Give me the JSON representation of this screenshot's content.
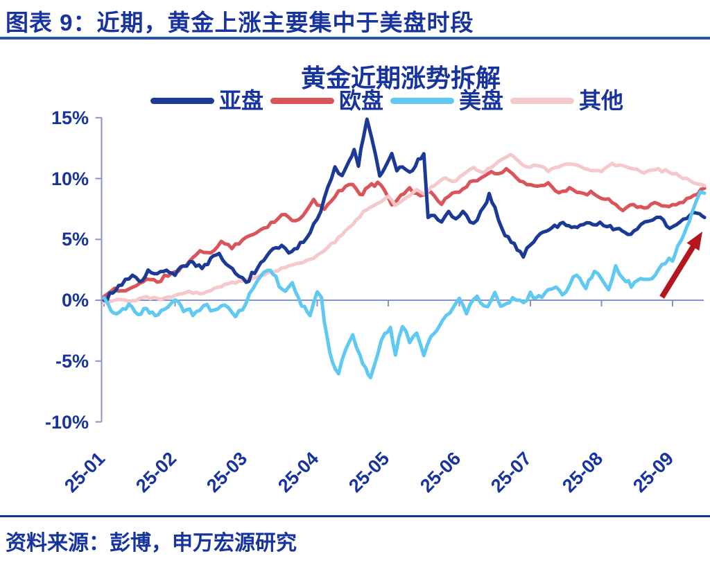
{
  "header": {
    "title": "图表 9：近期，黄金上涨主要集中于美盘时段",
    "text_color": "#17339E",
    "underline_color": "#2B51B4"
  },
  "source": {
    "text": "资料来源：彭博，申万宏源研究"
  },
  "chart_data": {
    "type": "line",
    "title": "黄金近期涨势拆解",
    "legend_position": "top",
    "grid": false,
    "text_color": "#17339E",
    "axis_color": "#8892C4",
    "x_axis": {
      "tick_labels": [
        "25-01",
        "25-02",
        "25-03",
        "25-04",
        "25-05",
        "25-06",
        "25-07",
        "25-08",
        "25-09"
      ],
      "unit": "year-month"
    },
    "y_axis": {
      "tick_labels": [
        "15%",
        "10%",
        "5%",
        "0%",
        "-5%",
        "-10%"
      ],
      "tick_values": [
        15,
        10,
        5,
        0,
        -5,
        -10
      ],
      "min": -10,
      "max": 15,
      "unit": "%"
    },
    "series": [
      {
        "name": "亚盘",
        "color": "#1B3A96",
        "points": [
          [
            0,
            0
          ],
          [
            0.12,
            0.6
          ],
          [
            0.25,
            1.4
          ],
          [
            0.4,
            2.1
          ],
          [
            0.5,
            1.5
          ],
          [
            0.62,
            2.4
          ],
          [
            0.75,
            2.0
          ],
          [
            0.88,
            2.6
          ],
          [
            1.0,
            2.1
          ],
          [
            1.12,
            2.9
          ],
          [
            1.25,
            3.2
          ],
          [
            1.38,
            2.5
          ],
          [
            1.5,
            3.3
          ],
          [
            1.62,
            3.7
          ],
          [
            1.72,
            3.0
          ],
          [
            1.85,
            2.1
          ],
          [
            2.0,
            1.6
          ],
          [
            2.12,
            2.3
          ],
          [
            2.25,
            3.2
          ],
          [
            2.38,
            4.2
          ],
          [
            2.5,
            4.5
          ],
          [
            2.6,
            3.7
          ],
          [
            2.72,
            4.3
          ],
          [
            2.85,
            5.1
          ],
          [
            2.95,
            6.3
          ],
          [
            3.05,
            7.5
          ],
          [
            3.15,
            9.3
          ],
          [
            3.25,
            10.9
          ],
          [
            3.35,
            10.1
          ],
          [
            3.45,
            11.4
          ],
          [
            3.52,
            12.3
          ],
          [
            3.58,
            11.2
          ],
          [
            3.65,
            13.3
          ],
          [
            3.7,
            14.8
          ],
          [
            3.76,
            13.6
          ],
          [
            3.82,
            11.9
          ],
          [
            3.88,
            10.1
          ],
          [
            3.95,
            10.9
          ],
          [
            4.05,
            11.9
          ],
          [
            4.12,
            10.6
          ],
          [
            4.2,
            11.0
          ],
          [
            4.3,
            10.4
          ],
          [
            4.42,
            11.4
          ],
          [
            4.5,
            12.1
          ],
          [
            4.56,
            6.6
          ],
          [
            4.65,
            6.9
          ],
          [
            4.75,
            6.4
          ],
          [
            4.85,
            7.2
          ],
          [
            4.95,
            6.6
          ],
          [
            5.05,
            7.3
          ],
          [
            5.15,
            6.4
          ],
          [
            5.25,
            6.6
          ],
          [
            5.35,
            7.6
          ],
          [
            5.42,
            8.6
          ],
          [
            5.5,
            7.4
          ],
          [
            5.6,
            5.9
          ],
          [
            5.73,
            4.8
          ],
          [
            5.9,
            3.7
          ],
          [
            6.0,
            4.6
          ],
          [
            6.14,
            5.5
          ],
          [
            6.3,
            5.9
          ],
          [
            6.46,
            6.4
          ],
          [
            6.58,
            6.0
          ],
          [
            6.7,
            6.2
          ],
          [
            6.88,
            6.3
          ],
          [
            7.08,
            6.2
          ],
          [
            7.25,
            5.7
          ],
          [
            7.37,
            5.3
          ],
          [
            7.5,
            5.9
          ],
          [
            7.61,
            6.4
          ],
          [
            7.72,
            6.6
          ],
          [
            7.83,
            6.9
          ],
          [
            7.96,
            5.8
          ],
          [
            8.1,
            6.4
          ],
          [
            8.25,
            7.0
          ],
          [
            8.38,
            7.2
          ],
          [
            8.45,
            6.8
          ]
        ]
      },
      {
        "name": "欧盘",
        "color": "#D9555A",
        "points": [
          [
            0,
            0.3
          ],
          [
            0.15,
            0.9
          ],
          [
            0.3,
            0.7
          ],
          [
            0.45,
            1.3
          ],
          [
            0.6,
            1.7
          ],
          [
            0.75,
            1.5
          ],
          [
            0.9,
            2.1
          ],
          [
            1.05,
            2.4
          ],
          [
            1.2,
            3.2
          ],
          [
            1.35,
            4.1
          ],
          [
            1.5,
            3.8
          ],
          [
            1.65,
            4.8
          ],
          [
            1.8,
            4.4
          ],
          [
            1.95,
            4.9
          ],
          [
            2.1,
            5.4
          ],
          [
            2.25,
            6.0
          ],
          [
            2.4,
            6.5
          ],
          [
            2.55,
            7.0
          ],
          [
            2.7,
            6.4
          ],
          [
            2.85,
            7.3
          ],
          [
            2.95,
            8.2
          ],
          [
            3.1,
            7.5
          ],
          [
            3.25,
            8.6
          ],
          [
            3.4,
            9.3
          ],
          [
            3.5,
            9.6
          ],
          [
            3.6,
            8.7
          ],
          [
            3.72,
            9.2
          ],
          [
            3.85,
            9.7
          ],
          [
            3.95,
            9.2
          ],
          [
            4.05,
            7.8
          ],
          [
            4.18,
            8.6
          ],
          [
            4.3,
            9.2
          ],
          [
            4.45,
            8.6
          ],
          [
            4.6,
            8.9
          ],
          [
            4.75,
            8.0
          ],
          [
            4.9,
            8.7
          ],
          [
            5.0,
            9.0
          ],
          [
            5.1,
            9.4
          ],
          [
            5.25,
            9.9
          ],
          [
            5.4,
            10.3
          ],
          [
            5.55,
            10.5
          ],
          [
            5.66,
            10.8
          ],
          [
            5.8,
            10.1
          ],
          [
            5.95,
            9.6
          ],
          [
            6.1,
            9.3
          ],
          [
            6.25,
            9.6
          ],
          [
            6.4,
            8.9
          ],
          [
            6.55,
            9.2
          ],
          [
            6.7,
            8.7
          ],
          [
            6.85,
            8.9
          ],
          [
            7.0,
            8.3
          ],
          [
            7.15,
            8.1
          ],
          [
            7.3,
            7.4
          ],
          [
            7.45,
            7.9
          ],
          [
            7.6,
            7.6
          ],
          [
            7.75,
            7.9
          ],
          [
            7.9,
            7.7
          ],
          [
            8.05,
            7.9
          ],
          [
            8.2,
            8.3
          ],
          [
            8.35,
            8.9
          ],
          [
            8.45,
            9.2
          ]
        ]
      },
      {
        "name": "美盘",
        "color": "#5FC9F1",
        "points": [
          [
            0,
            0.2
          ],
          [
            0.1,
            -0.6
          ],
          [
            0.22,
            -1.1
          ],
          [
            0.35,
            -0.3
          ],
          [
            0.48,
            -1.2
          ],
          [
            0.6,
            -0.5
          ],
          [
            0.72,
            -1.3
          ],
          [
            0.85,
            -0.6
          ],
          [
            1.0,
            0.2
          ],
          [
            1.12,
            -0.7
          ],
          [
            1.25,
            -1.1
          ],
          [
            1.4,
            -0.4
          ],
          [
            1.55,
            -1.0
          ],
          [
            1.7,
            -0.5
          ],
          [
            1.85,
            -1.2
          ],
          [
            2.0,
            -0.2
          ],
          [
            2.1,
            0.9
          ],
          [
            2.2,
            2.1
          ],
          [
            2.3,
            2.6
          ],
          [
            2.42,
            1.8
          ],
          [
            2.55,
            0.6
          ],
          [
            2.65,
            1.2
          ],
          [
            2.78,
            -0.2
          ],
          [
            2.9,
            -1.1
          ],
          [
            3.0,
            0.4
          ],
          [
            3.06,
            0.1
          ],
          [
            3.14,
            -3.2
          ],
          [
            3.22,
            -5.3
          ],
          [
            3.3,
            -6.1
          ],
          [
            3.4,
            -4.0
          ],
          [
            3.5,
            -2.9
          ],
          [
            3.6,
            -4.7
          ],
          [
            3.68,
            -5.7
          ],
          [
            3.75,
            -6.3
          ],
          [
            3.85,
            -4.4
          ],
          [
            3.95,
            -2.7
          ],
          [
            4.03,
            -2.5
          ],
          [
            4.1,
            -4.4
          ],
          [
            4.2,
            -1.9
          ],
          [
            4.3,
            -3.5
          ],
          [
            4.4,
            -2.6
          ],
          [
            4.5,
            -4.4
          ],
          [
            4.6,
            -3.2
          ],
          [
            4.72,
            -2.1
          ],
          [
            4.82,
            -1.1
          ],
          [
            4.92,
            -0.5
          ],
          [
            5.0,
            0.3
          ],
          [
            5.1,
            -0.9
          ],
          [
            5.25,
            0.1
          ],
          [
            5.4,
            -0.4
          ],
          [
            5.5,
            0.4
          ],
          [
            5.62,
            -0.7
          ],
          [
            5.75,
            0.2
          ],
          [
            5.9,
            -0.3
          ],
          [
            6.0,
            0.5
          ],
          [
            6.12,
            0.2
          ],
          [
            6.25,
            0.8
          ],
          [
            6.36,
            1.2
          ],
          [
            6.45,
            0.3
          ],
          [
            6.55,
            1.4
          ],
          [
            6.65,
            2.0
          ],
          [
            6.78,
            1.2
          ],
          [
            6.9,
            2.4
          ],
          [
            7.0,
            1.8
          ],
          [
            7.1,
            0.9
          ],
          [
            7.2,
            2.6
          ],
          [
            7.3,
            1.7
          ],
          [
            7.42,
            1.2
          ],
          [
            7.55,
            1.9
          ],
          [
            7.67,
            1.7
          ],
          [
            7.8,
            2.4
          ],
          [
            7.9,
            3.1
          ],
          [
            8.0,
            3.5
          ],
          [
            8.07,
            4.3
          ],
          [
            8.13,
            5.0
          ],
          [
            8.2,
            6.0
          ],
          [
            8.27,
            7.0
          ],
          [
            8.33,
            8.2
          ],
          [
            8.39,
            9.2
          ],
          [
            8.45,
            8.8
          ]
        ]
      },
      {
        "name": "其他",
        "color": "#F5C8CC",
        "points": [
          [
            0,
            -0.2
          ],
          [
            0.2,
            0.1
          ],
          [
            0.4,
            -0.1
          ],
          [
            0.6,
            0.3
          ],
          [
            0.8,
            0.1
          ],
          [
            1.0,
            0.4
          ],
          [
            1.2,
            0.7
          ],
          [
            1.4,
            0.5
          ],
          [
            1.6,
            1.1
          ],
          [
            1.8,
            1.4
          ],
          [
            2.0,
            1.7
          ],
          [
            2.2,
            2.0
          ],
          [
            2.4,
            2.4
          ],
          [
            2.6,
            2.8
          ],
          [
            2.8,
            3.1
          ],
          [
            3.0,
            3.7
          ],
          [
            3.15,
            4.4
          ],
          [
            3.3,
            5.1
          ],
          [
            3.45,
            6.0
          ],
          [
            3.6,
            6.9
          ],
          [
            3.75,
            7.7
          ],
          [
            3.9,
            8.2
          ],
          [
            4.0,
            8.5
          ],
          [
            4.1,
            7.8
          ],
          [
            4.25,
            8.4
          ],
          [
            4.4,
            9.2
          ],
          [
            4.5,
            8.7
          ],
          [
            4.65,
            9.5
          ],
          [
            4.8,
            10.1
          ],
          [
            4.9,
            9.7
          ],
          [
            5.05,
            10.3
          ],
          [
            5.2,
            10.9
          ],
          [
            5.35,
            10.5
          ],
          [
            5.5,
            11.2
          ],
          [
            5.6,
            11.6
          ],
          [
            5.72,
            12.0
          ],
          [
            5.85,
            11.3
          ],
          [
            5.95,
            10.9
          ],
          [
            6.1,
            11.1
          ],
          [
            6.25,
            10.7
          ],
          [
            6.4,
            11.0
          ],
          [
            6.55,
            11.3
          ],
          [
            6.7,
            10.9
          ],
          [
            6.85,
            10.7
          ],
          [
            7.0,
            10.6
          ],
          [
            7.15,
            11.2
          ],
          [
            7.3,
            11.0
          ],
          [
            7.45,
            10.8
          ],
          [
            7.6,
            10.5
          ],
          [
            7.75,
            10.7
          ],
          [
            7.9,
            10.6
          ],
          [
            8.05,
            10.3
          ],
          [
            8.2,
            9.9
          ],
          [
            8.35,
            9.5
          ],
          [
            8.45,
            9.4
          ]
        ]
      }
    ],
    "annotation_arrow": {
      "color": "#B5161D",
      "from": [
        7.85,
        0.25
      ],
      "to": [
        8.42,
        5.65
      ]
    }
  }
}
